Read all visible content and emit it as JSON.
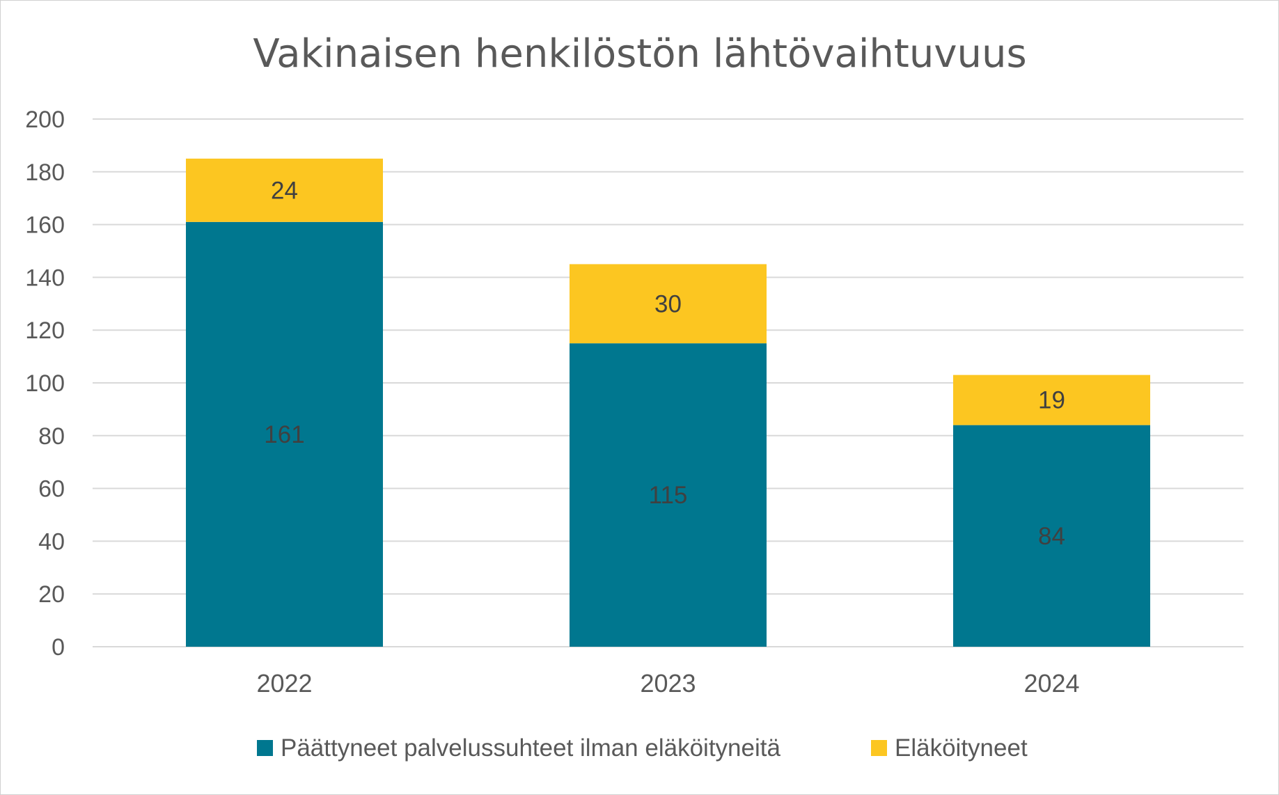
{
  "chart_data": {
    "type": "bar",
    "stacked": true,
    "title": "Vakinaisen henkilöstön lähtövaihtuvuus",
    "xlabel": "",
    "ylabel": "",
    "categories": [
      "2022",
      "2023",
      "2024"
    ],
    "series": [
      {
        "name": "Päättyneet palvelussuhteet ilman eläköityneitä",
        "values": [
          161,
          115,
          84
        ],
        "color": "#00778F"
      },
      {
        "name": "Eläköityneet",
        "values": [
          24,
          30,
          19
        ],
        "color": "#FCC621"
      }
    ],
    "ylim": [
      0,
      200
    ],
    "yticks": [
      0,
      20,
      40,
      60,
      80,
      100,
      120,
      140,
      160,
      180,
      200
    ],
    "grid": true,
    "legend": "bottom",
    "data_labels": true
  }
}
